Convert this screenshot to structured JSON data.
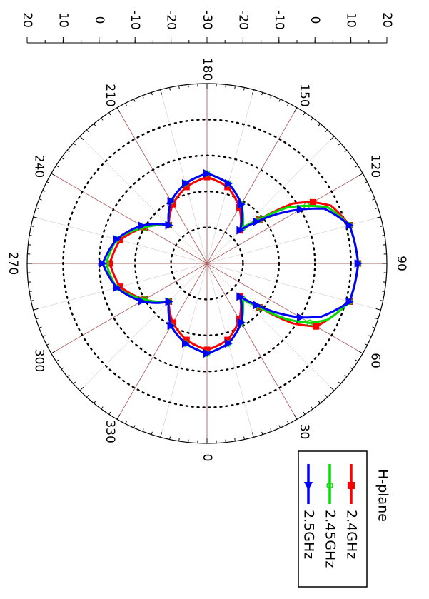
{
  "chart_data": {
    "type": "polar",
    "title": "",
    "orientation": "rotated 90 degrees clockwise",
    "radial_axis": {
      "range_db": [
        -30,
        20
      ],
      "tick_labels_top": [
        "20",
        "10",
        "0",
        "-10",
        "-20",
        "-30"
      ],
      "tick_labels_bottom": [
        "-30",
        "-20",
        "-10",
        "0",
        "10",
        "20"
      ],
      "tick_values": [
        -30,
        -20,
        -10,
        0,
        10,
        20
      ],
      "dotted_circles_db": [
        -20,
        -10,
        0,
        10
      ]
    },
    "angular_axis": {
      "step_deg": 30,
      "tick_labels": [
        "0",
        "30",
        "60",
        "90",
        "120",
        "150",
        "180",
        "210",
        "240",
        "270",
        "300",
        "330"
      ],
      "minor_spokes_step_deg": 15
    },
    "legend": {
      "title": "H-plane",
      "placement": "bottom-right",
      "entries": [
        "2.4GHz",
        "2.45GHz",
        "2.5GHz"
      ]
    },
    "colors": {
      "2.4GHz": "#ff0000",
      "2.45GHz": "#00dd00",
      "2.5GHz": "#0000ff",
      "grid_spoke": "#b06060"
    },
    "series": [
      {
        "name": "2.4GHz",
        "marker": "square",
        "angle": [
          0,
          15,
          30,
          45,
          50,
          55,
          60,
          65,
          75,
          90,
          105,
          115,
          120,
          125,
          130,
          135,
          150,
          165,
          180,
          195,
          210,
          225,
          240,
          255,
          270,
          285,
          300,
          315,
          330,
          345,
          360
        ],
        "r_db": [
          -6,
          -8,
          -12,
          -17,
          -11,
          -1,
          5,
          7,
          11,
          12,
          11,
          8,
          4,
          -1,
          -11,
          -17,
          -12,
          -8,
          -6,
          -8,
          -11,
          -15,
          -10,
          -5,
          -3,
          -5,
          -10,
          -15,
          -11,
          -8,
          -6
        ]
      },
      {
        "name": "2.45GHz",
        "marker": "circle",
        "angle": [
          0,
          15,
          30,
          45,
          50,
          55,
          60,
          65,
          75,
          90,
          105,
          115,
          120,
          125,
          130,
          135,
          150,
          165,
          180,
          195,
          210,
          225,
          240,
          255,
          270,
          285,
          300,
          315,
          330,
          345,
          360
        ],
        "r_db": [
          -5,
          -7,
          -11,
          -16,
          -11,
          -3,
          3,
          7,
          11,
          12,
          11,
          7,
          2,
          -3,
          -11,
          -16,
          -11,
          -7,
          -5,
          -7,
          -10,
          -15,
          -10,
          -4,
          -2,
          -4,
          -10,
          -15,
          -10,
          -7,
          -5
        ]
      },
      {
        "name": "2.5GHz",
        "marker": "triangle",
        "angle": [
          0,
          15,
          30,
          45,
          50,
          55,
          60,
          65,
          75,
          90,
          105,
          115,
          120,
          125,
          130,
          135,
          150,
          165,
          180,
          195,
          210,
          225,
          240,
          255,
          270,
          285,
          300,
          315,
          330,
          345,
          360
        ],
        "r_db": [
          -5,
          -7,
          -11,
          -17,
          -12,
          -6,
          0,
          5,
          11,
          12,
          11,
          6,
          0,
          -6,
          -12,
          -17,
          -11,
          -7,
          -5,
          -7,
          -10,
          -15,
          -9,
          -4,
          -1,
          -4,
          -9,
          -15,
          -10,
          -7,
          -5
        ]
      }
    ]
  }
}
